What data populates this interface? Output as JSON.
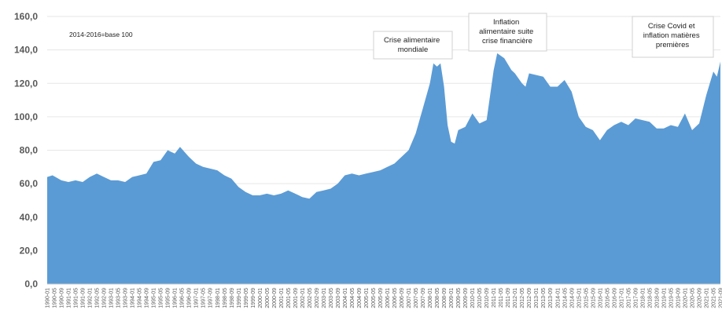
{
  "chart_data": {
    "type": "area",
    "title": "",
    "xlabel": "",
    "ylabel": "",
    "note": "2014-2016=base 100",
    "ylim": [
      0,
      160
    ],
    "yticks": [
      "0,0",
      "20,0",
      "40,0",
      "60,0",
      "80,0",
      "100,0",
      "120,0",
      "140,0",
      "160,0"
    ],
    "grid": true,
    "fill_color": "#5b9bd5",
    "x_tick_step_months": 4,
    "x_range": [
      "1990-01",
      "2021-09"
    ],
    "series": [
      {
        "values": [
          {
            "x": "1990-01",
            "y": 64
          },
          {
            "x": "1990-04",
            "y": 65
          },
          {
            "x": "1990-09",
            "y": 62
          },
          {
            "x": "1991-01",
            "y": 61
          },
          {
            "x": "1991-05",
            "y": 62
          },
          {
            "x": "1991-09",
            "y": 61
          },
          {
            "x": "1992-01",
            "y": 64
          },
          {
            "x": "1992-05",
            "y": 66
          },
          {
            "x": "1992-09",
            "y": 64
          },
          {
            "x": "1993-01",
            "y": 62
          },
          {
            "x": "1993-05",
            "y": 62
          },
          {
            "x": "1993-09",
            "y": 61
          },
          {
            "x": "1994-01",
            "y": 64
          },
          {
            "x": "1994-05",
            "y": 65
          },
          {
            "x": "1994-09",
            "y": 66
          },
          {
            "x": "1995-01",
            "y": 73
          },
          {
            "x": "1995-05",
            "y": 74
          },
          {
            "x": "1995-09",
            "y": 80
          },
          {
            "x": "1996-01",
            "y": 78
          },
          {
            "x": "1996-04",
            "y": 82
          },
          {
            "x": "1996-09",
            "y": 76
          },
          {
            "x": "1997-01",
            "y": 72
          },
          {
            "x": "1997-05",
            "y": 70
          },
          {
            "x": "1997-09",
            "y": 69
          },
          {
            "x": "1998-01",
            "y": 68
          },
          {
            "x": "1998-05",
            "y": 65
          },
          {
            "x": "1998-09",
            "y": 63
          },
          {
            "x": "1999-01",
            "y": 58
          },
          {
            "x": "1999-05",
            "y": 55
          },
          {
            "x": "1999-09",
            "y": 53
          },
          {
            "x": "2000-01",
            "y": 53
          },
          {
            "x": "2000-05",
            "y": 54
          },
          {
            "x": "2000-09",
            "y": 53
          },
          {
            "x": "2001-01",
            "y": 54
          },
          {
            "x": "2001-05",
            "y": 56
          },
          {
            "x": "2001-09",
            "y": 54
          },
          {
            "x": "2002-01",
            "y": 52
          },
          {
            "x": "2002-05",
            "y": 51
          },
          {
            "x": "2002-09",
            "y": 55
          },
          {
            "x": "2003-01",
            "y": 56
          },
          {
            "x": "2003-05",
            "y": 57
          },
          {
            "x": "2003-09",
            "y": 60
          },
          {
            "x": "2004-01",
            "y": 65
          },
          {
            "x": "2004-05",
            "y": 66
          },
          {
            "x": "2004-09",
            "y": 65
          },
          {
            "x": "2005-01",
            "y": 66
          },
          {
            "x": "2005-05",
            "y": 67
          },
          {
            "x": "2005-09",
            "y": 68
          },
          {
            "x": "2006-01",
            "y": 70
          },
          {
            "x": "2006-05",
            "y": 72
          },
          {
            "x": "2006-09",
            "y": 76
          },
          {
            "x": "2007-01",
            "y": 80
          },
          {
            "x": "2007-05",
            "y": 90
          },
          {
            "x": "2007-09",
            "y": 105
          },
          {
            "x": "2008-01",
            "y": 120
          },
          {
            "x": "2008-03",
            "y": 132
          },
          {
            "x": "2008-05",
            "y": 130
          },
          {
            "x": "2008-07",
            "y": 132
          },
          {
            "x": "2008-09",
            "y": 118
          },
          {
            "x": "2008-11",
            "y": 95
          },
          {
            "x": "2009-01",
            "y": 85
          },
          {
            "x": "2009-03",
            "y": 84
          },
          {
            "x": "2009-05",
            "y": 92
          },
          {
            "x": "2009-09",
            "y": 94
          },
          {
            "x": "2010-01",
            "y": 102
          },
          {
            "x": "2010-05",
            "y": 96
          },
          {
            "x": "2010-09",
            "y": 98
          },
          {
            "x": "2011-01",
            "y": 128
          },
          {
            "x": "2011-03",
            "y": 138
          },
          {
            "x": "2011-07",
            "y": 135
          },
          {
            "x": "2011-11",
            "y": 128
          },
          {
            "x": "2012-01",
            "y": 126
          },
          {
            "x": "2012-05",
            "y": 120
          },
          {
            "x": "2012-07",
            "y": 118
          },
          {
            "x": "2012-09",
            "y": 126
          },
          {
            "x": "2013-01",
            "y": 125
          },
          {
            "x": "2013-05",
            "y": 124
          },
          {
            "x": "2013-09",
            "y": 118
          },
          {
            "x": "2014-01",
            "y": 118
          },
          {
            "x": "2014-05",
            "y": 122
          },
          {
            "x": "2014-09",
            "y": 115
          },
          {
            "x": "2015-01",
            "y": 100
          },
          {
            "x": "2015-05",
            "y": 94
          },
          {
            "x": "2015-09",
            "y": 92
          },
          {
            "x": "2016-01",
            "y": 86
          },
          {
            "x": "2016-05",
            "y": 92
          },
          {
            "x": "2016-09",
            "y": 95
          },
          {
            "x": "2017-01",
            "y": 97
          },
          {
            "x": "2017-05",
            "y": 95
          },
          {
            "x": "2017-09",
            "y": 99
          },
          {
            "x": "2018-01",
            "y": 98
          },
          {
            "x": "2018-05",
            "y": 97
          },
          {
            "x": "2018-09",
            "y": 93
          },
          {
            "x": "2019-01",
            "y": 93
          },
          {
            "x": "2019-05",
            "y": 95
          },
          {
            "x": "2019-09",
            "y": 94
          },
          {
            "x": "2020-01",
            "y": 102
          },
          {
            "x": "2020-05",
            "y": 92
          },
          {
            "x": "2020-09",
            "y": 96
          },
          {
            "x": "2021-01",
            "y": 113
          },
          {
            "x": "2021-05",
            "y": 127
          },
          {
            "x": "2021-07",
            "y": 124
          },
          {
            "x": "2021-09",
            "y": 133
          }
        ]
      }
    ],
    "annotations": [
      {
        "lines": [
          "Crise alimentaire",
          "mondiale"
        ]
      },
      {
        "lines": [
          "Inflation",
          "alimentaire suite",
          "crise financière"
        ]
      },
      {
        "lines": [
          "Crise Covid et",
          "inflation matières",
          "premières"
        ]
      }
    ]
  }
}
